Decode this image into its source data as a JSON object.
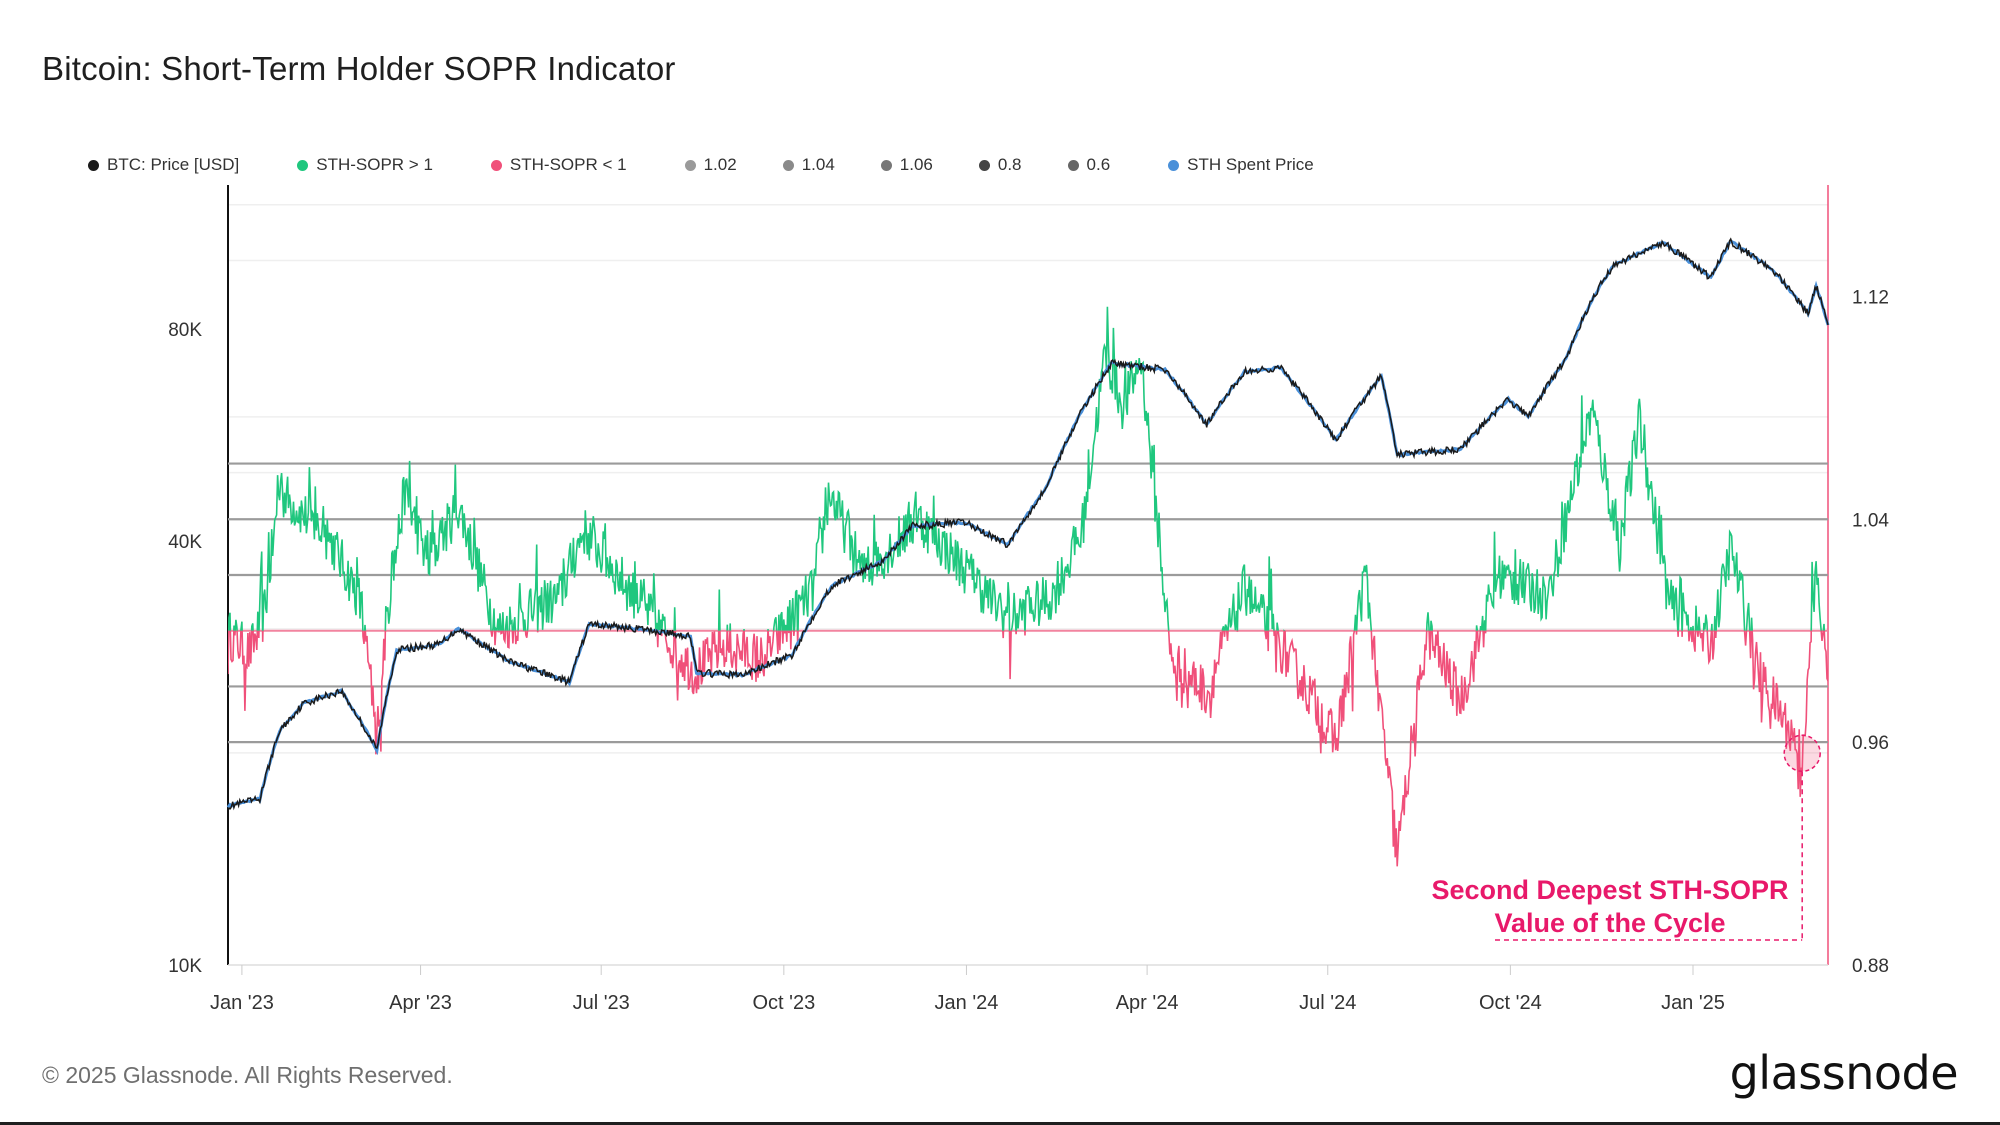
{
  "title": "Bitcoin: Short-Term Holder SOPR Indicator",
  "legend": [
    {
      "label": "BTC: Price [USD]",
      "color": "#1a1a1a"
    },
    {
      "label": "STH-SOPR > 1",
      "color": "#1fc77e"
    },
    {
      "label": "STH-SOPR < 1",
      "color": "#f0507a"
    },
    {
      "label": "1.02",
      "color": "#9a9a9a"
    },
    {
      "label": "1.04",
      "color": "#8a8a8a"
    },
    {
      "label": "1.06",
      "color": "#777777"
    },
    {
      "label": "0.8",
      "color": "#444444"
    },
    {
      "label": "0.6",
      "color": "#666666"
    },
    {
      "label": "STH Spent Price",
      "color": "#4a90d9"
    }
  ],
  "annotation": {
    "line1": "Second Deepest STH-SOPR",
    "line2": "Value of the Cycle",
    "color": "#e8196a"
  },
  "footer": "© 2025 Glassnode. All Rights Reserved.",
  "logo": "glassnode",
  "chart_data": {
    "type": "line",
    "x_ticks": [
      "Jan '23",
      "Apr '23",
      "Jul '23",
      "Oct '23",
      "Jan '24",
      "Apr '24",
      "Jul '24",
      "Oct '24",
      "Jan '25"
    ],
    "x_range": [
      "2022-12-25",
      "2025-03-10"
    ],
    "y_left": {
      "scale": "log",
      "ticks": [
        "10K",
        "40K",
        "80K"
      ],
      "tick_values": [
        10000,
        40000,
        80000
      ],
      "range": [
        10000,
        128000
      ]
    },
    "y_right": {
      "scale": "linear",
      "ticks": [
        "0.88",
        "0.96",
        "1.04",
        "1.12"
      ],
      "tick_values": [
        0.88,
        0.96,
        1.04,
        1.12
      ],
      "range": [
        0.88,
        1.16
      ]
    },
    "reference_lines": [
      0.96,
      0.98,
      1.0,
      1.02,
      1.04,
      1.06
    ],
    "btc_price": {
      "name": "BTC: Price [USD]",
      "points": [
        [
          "2022-12-25",
          16800
        ],
        [
          "2023-01-10",
          17200
        ],
        [
          "2023-01-20",
          21500
        ],
        [
          "2023-02-01",
          23500
        ],
        [
          "2023-02-20",
          24500
        ],
        [
          "2023-03-10",
          20200
        ],
        [
          "2023-03-20",
          28000
        ],
        [
          "2023-04-10",
          28500
        ],
        [
          "2023-04-20",
          30000
        ],
        [
          "2023-05-15",
          27000
        ],
        [
          "2023-06-15",
          25200
        ],
        [
          "2023-06-25",
          30500
        ],
        [
          "2023-07-20",
          30000
        ],
        [
          "2023-08-15",
          29300
        ],
        [
          "2023-08-18",
          26000
        ],
        [
          "2023-09-10",
          25800
        ],
        [
          "2023-10-05",
          27500
        ],
        [
          "2023-10-25",
          34500
        ],
        [
          "2023-11-20",
          37500
        ],
        [
          "2023-12-05",
          42000
        ],
        [
          "2023-12-31",
          42500
        ],
        [
          "2024-01-22",
          39500
        ],
        [
          "2024-02-10",
          47500
        ],
        [
          "2024-02-28",
          61000
        ],
        [
          "2024-03-14",
          71500
        ],
        [
          "2024-04-10",
          70000
        ],
        [
          "2024-05-01",
          58500
        ],
        [
          "2024-05-20",
          69500
        ],
        [
          "2024-06-07",
          70500
        ],
        [
          "2024-07-05",
          55500
        ],
        [
          "2024-07-28",
          68500
        ],
        [
          "2024-08-05",
          53000
        ],
        [
          "2024-09-06",
          54000
        ],
        [
          "2024-09-30",
          63500
        ],
        [
          "2024-10-10",
          60000
        ],
        [
          "2024-10-29",
          72500
        ],
        [
          "2024-11-12",
          89000
        ],
        [
          "2024-11-22",
          98500
        ],
        [
          "2024-12-17",
          106000
        ],
        [
          "2025-01-10",
          94500
        ],
        [
          "2025-01-20",
          106500
        ],
        [
          "2025-02-10",
          97000
        ],
        [
          "2025-02-28",
          84000
        ],
        [
          "2025-03-04",
          92000
        ],
        [
          "2025-03-10",
          81000
        ]
      ]
    },
    "sth_sopr": {
      "name": "STH-SOPR",
      "points": [
        [
          "2022-12-25",
          0.999
        ],
        [
          "2023-01-05",
          0.992
        ],
        [
          "2023-01-12",
          1.005
        ],
        [
          "2023-01-20",
          1.05
        ],
        [
          "2023-01-29",
          1.044
        ],
        [
          "2023-02-15",
          1.032
        ],
        [
          "2023-03-01",
          1.012
        ],
        [
          "2023-03-10",
          0.965
        ],
        [
          "2023-03-15",
          1.005
        ],
        [
          "2023-03-24",
          1.05
        ],
        [
          "2023-04-05",
          1.024
        ],
        [
          "2023-04-20",
          1.045
        ],
        [
          "2023-05-10",
          1.0
        ],
        [
          "2023-06-10",
          1.012
        ],
        [
          "2023-06-22",
          1.036
        ],
        [
          "2023-07-15",
          1.015
        ],
        [
          "2023-08-17",
          0.985
        ],
        [
          "2023-09-01",
          0.995
        ],
        [
          "2023-09-20",
          0.99
        ],
        [
          "2023-10-16",
          1.015
        ],
        [
          "2023-10-24",
          1.05
        ],
        [
          "2023-11-10",
          1.02
        ],
        [
          "2023-12-08",
          1.04
        ],
        [
          "2024-01-03",
          1.02
        ],
        [
          "2024-01-22",
          1.004
        ],
        [
          "2024-02-13",
          1.012
        ],
        [
          "2024-02-28",
          1.035
        ],
        [
          "2024-03-11",
          1.1
        ],
        [
          "2024-03-20",
          1.08
        ],
        [
          "2024-03-29",
          1.098
        ],
        [
          "2024-04-13",
          0.99
        ],
        [
          "2024-05-01",
          0.978
        ],
        [
          "2024-05-20",
          1.015
        ],
        [
          "2024-06-24",
          0.975
        ],
        [
          "2024-07-05",
          0.96
        ],
        [
          "2024-07-20",
          1.02
        ],
        [
          "2024-08-05",
          0.92
        ],
        [
          "2024-08-20",
          1.0
        ],
        [
          "2024-09-06",
          0.975
        ],
        [
          "2024-09-25",
          1.02
        ],
        [
          "2024-10-20",
          1.012
        ],
        [
          "2024-11-11",
          1.08
        ],
        [
          "2024-11-25",
          1.03
        ],
        [
          "2024-12-05",
          1.075
        ],
        [
          "2024-12-20",
          1.01
        ],
        [
          "2025-01-10",
          0.995
        ],
        [
          "2025-01-20",
          1.03
        ],
        [
          "2025-02-03",
          0.985
        ],
        [
          "2025-02-25",
          0.956
        ],
        [
          "2025-03-04",
          1.02
        ],
        [
          "2025-03-10",
          0.982
        ]
      ]
    }
  }
}
